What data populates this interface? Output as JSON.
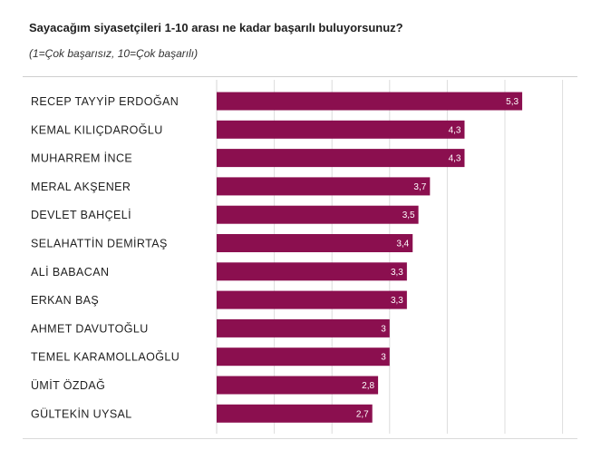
{
  "title": "Sayacağım siyasetçileri 1-10 arası ne kadar başarılı buluyorsunuz?",
  "subtitle": "(1=Çok başarısız, 10=Çok başarılı)",
  "colors": {
    "bar": "#8b0f4f",
    "grid": "#dcdcdc"
  },
  "chart_data": {
    "type": "bar",
    "orientation": "horizontal",
    "title": "Sayacağım siyasetçileri 1-10 arası ne kadar başarılı buluyorsunuz?",
    "subtitle": "(1=Çok başarısız, 10=Çok başarılı)",
    "categories": [
      "RECEP TAYYİP ERDOĞAN",
      "KEMAL KILIÇDAROĞLU",
      "MUHARREM İNCE",
      "MERAL AKŞENER",
      "DEVLET BAHÇELİ",
      "SELAHATTİN DEMİRTAŞ",
      "ALİ BABACAN",
      "ERKAN BAŞ",
      "AHMET DAVUTOĞLU",
      "TEMEL KARAMOLLAOĞLU",
      "ÜMİT ÖZDAĞ",
      "GÜLTEKİN UYSAL"
    ],
    "values": [
      5.3,
      4.3,
      4.3,
      3.7,
      3.5,
      3.4,
      3.3,
      3.3,
      3,
      3,
      2.8,
      2.7
    ],
    "value_labels": [
      "5,3",
      "4,3",
      "4,3",
      "3,7",
      "3,5",
      "3,4",
      "3,3",
      "3,3",
      "3",
      "3",
      "2,8",
      "2,7"
    ],
    "xlabel": "",
    "ylabel": "",
    "xlim": [
      0,
      6
    ],
    "grid": true
  }
}
